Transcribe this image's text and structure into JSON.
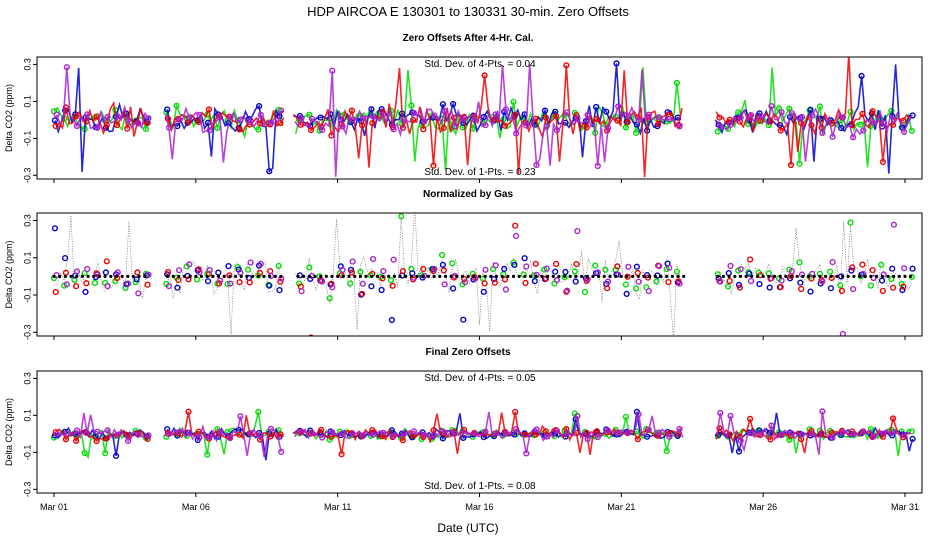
{
  "chart_data": {
    "type": "scatter",
    "title": "HDP   AIRCOA E   130301 to 130331   30-min. Zero Offsets",
    "xlabel": "Date (UTC)",
    "x_range_days": [
      0.4,
      31.6
    ],
    "x_ticks": [
      {
        "day": 1,
        "label": "Mar 01"
      },
      {
        "day": 6,
        "label": "Mar 06"
      },
      {
        "day": 11,
        "label": "Mar 11"
      },
      {
        "day": 16,
        "label": "Mar 16"
      },
      {
        "day": 21,
        "label": "Mar 21"
      },
      {
        "day": 26,
        "label": "Mar 26"
      },
      {
        "day": 31,
        "label": "Mar 31"
      }
    ],
    "ylim": [
      -0.32,
      0.34
    ],
    "y_ticks": [
      {
        "value": 0.3,
        "label": "0.3"
      },
      {
        "value": 0.1,
        "label": "0.1"
      },
      {
        "value": -0.1,
        "label": "-0.1"
      },
      {
        "value": -0.3,
        "label": "-0.3"
      }
    ],
    "series_colors": [
      "#00dd00",
      "#0000cc",
      "#ee0000",
      "#aa22cc"
    ],
    "data_gaps_days": [
      [
        4.4,
        4.9
      ],
      [
        9.1,
        9.4
      ],
      [
        23.2,
        24.3
      ]
    ],
    "panels": [
      {
        "title": "Zero Offsets After 4-Hr. Cal.",
        "ylabel": "Delta CO2 (ppm)",
        "annotation_top": "Std. Dev. of 4-Pts. =  0.04",
        "annotation_bottom": "Std. Dev. of 1-Pts. =  0.23",
        "baseline": 0.0,
        "spread": 0.12,
        "style": "lines"
      },
      {
        "title": "Normalized by Gas",
        "ylabel": "Delta CO2 (ppm)",
        "annotation_top": "",
        "annotation_bottom": "",
        "baseline": 0.0,
        "spread": 0.14,
        "style": "points"
      },
      {
        "title": "Final Zero Offsets",
        "ylabel": "Delta CO2 (ppm)",
        "annotation_top": "Std. Dev. of 4-Pts. =  0.05",
        "annotation_bottom": "Std. Dev. of 1-Pts. =  0.08",
        "baseline": 0.0,
        "spread": 0.05,
        "style": "lines"
      }
    ]
  }
}
